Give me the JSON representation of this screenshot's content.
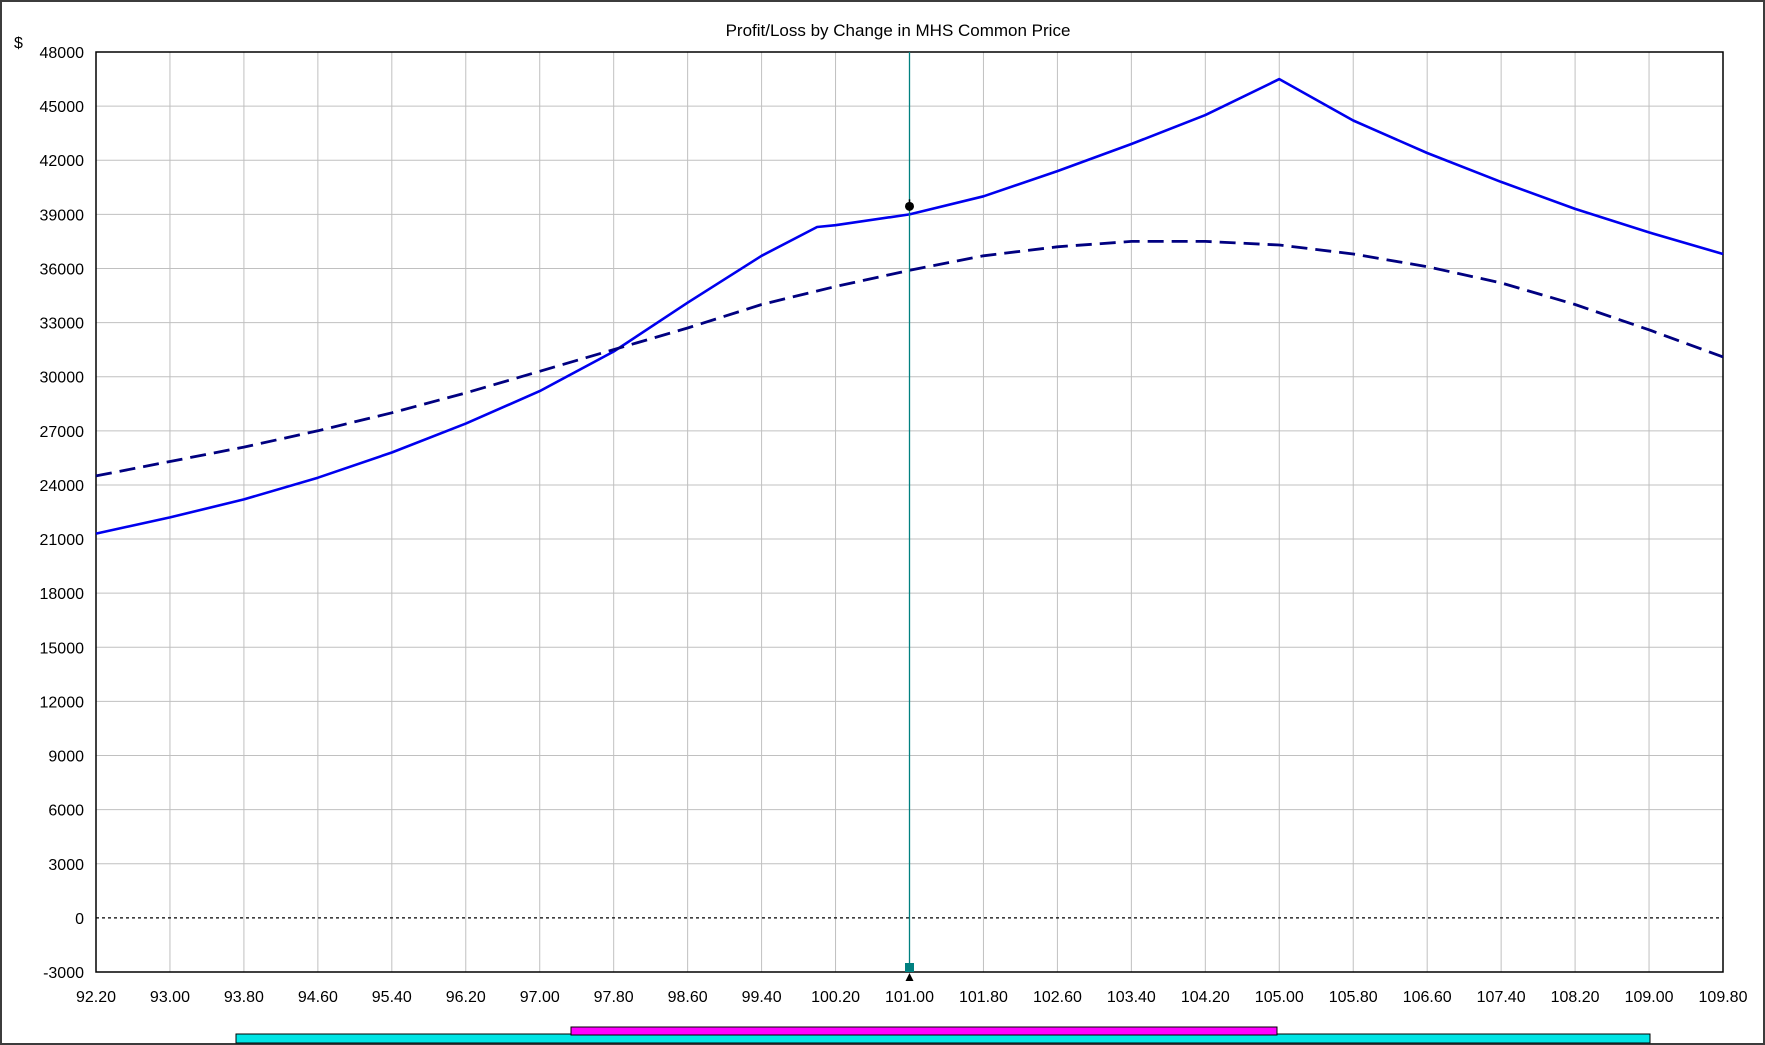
{
  "chart_data": {
    "type": "line",
    "title": "Profit/Loss by Change in MHS Common Price",
    "ylabel": "$",
    "xlabel": "",
    "xlim": [
      92.2,
      109.8
    ],
    "ylim": [
      -3000,
      48000
    ],
    "x_ticks": [
      "92.20",
      "93.00",
      "93.80",
      "94.60",
      "95.40",
      "96.20",
      "97.00",
      "97.80",
      "98.60",
      "99.40",
      "100.20",
      "101.00",
      "101.80",
      "102.60",
      "103.40",
      "104.20",
      "105.00",
      "105.80",
      "106.60",
      "107.40",
      "108.20",
      "109.00",
      "109.80"
    ],
    "y_ticks": [
      "48000",
      "45000",
      "42000",
      "39000",
      "36000",
      "33000",
      "30000",
      "27000",
      "24000",
      "21000",
      "18000",
      "15000",
      "12000",
      "9000",
      "6000",
      "3000",
      "0",
      "-3000"
    ],
    "grid": true,
    "current_price": 101.0,
    "current_value": 39000,
    "series": [
      {
        "style": "solid",
        "color": "#0000ee",
        "x": [
          92.2,
          93.0,
          93.8,
          94.6,
          95.4,
          96.2,
          97.0,
          97.8,
          98.6,
          99.4,
          100.0,
          100.2,
          101.0,
          101.8,
          102.6,
          103.4,
          104.2,
          105.0,
          105.8,
          106.6,
          107.4,
          108.2,
          109.0,
          109.8
        ],
        "y": [
          21300,
          22200,
          23200,
          24400,
          25800,
          27400,
          29200,
          31400,
          34100,
          36700,
          38300,
          38400,
          39000,
          40000,
          41400,
          42900,
          44500,
          46500,
          44200,
          42400,
          40800,
          39300,
          38000,
          36800
        ]
      },
      {
        "style": "dashed",
        "color": "#000080",
        "x": [
          92.2,
          93.0,
          93.8,
          94.6,
          95.4,
          96.2,
          97.0,
          97.8,
          98.6,
          99.4,
          100.2,
          101.0,
          101.8,
          102.6,
          103.4,
          104.2,
          105.0,
          105.8,
          106.6,
          107.4,
          108.2,
          109.0,
          109.8
        ],
        "y": [
          24500,
          25300,
          26100,
          27000,
          28000,
          29100,
          30300,
          31500,
          32700,
          34000,
          35000,
          35900,
          36700,
          37200,
          37500,
          37500,
          37300,
          36800,
          36100,
          35200,
          34000,
          32600,
          31100
        ]
      }
    ],
    "zero_line": 0
  },
  "scrollbar": {
    "track_color": "#00e5e5",
    "thumb_color": "#ff00ff"
  }
}
